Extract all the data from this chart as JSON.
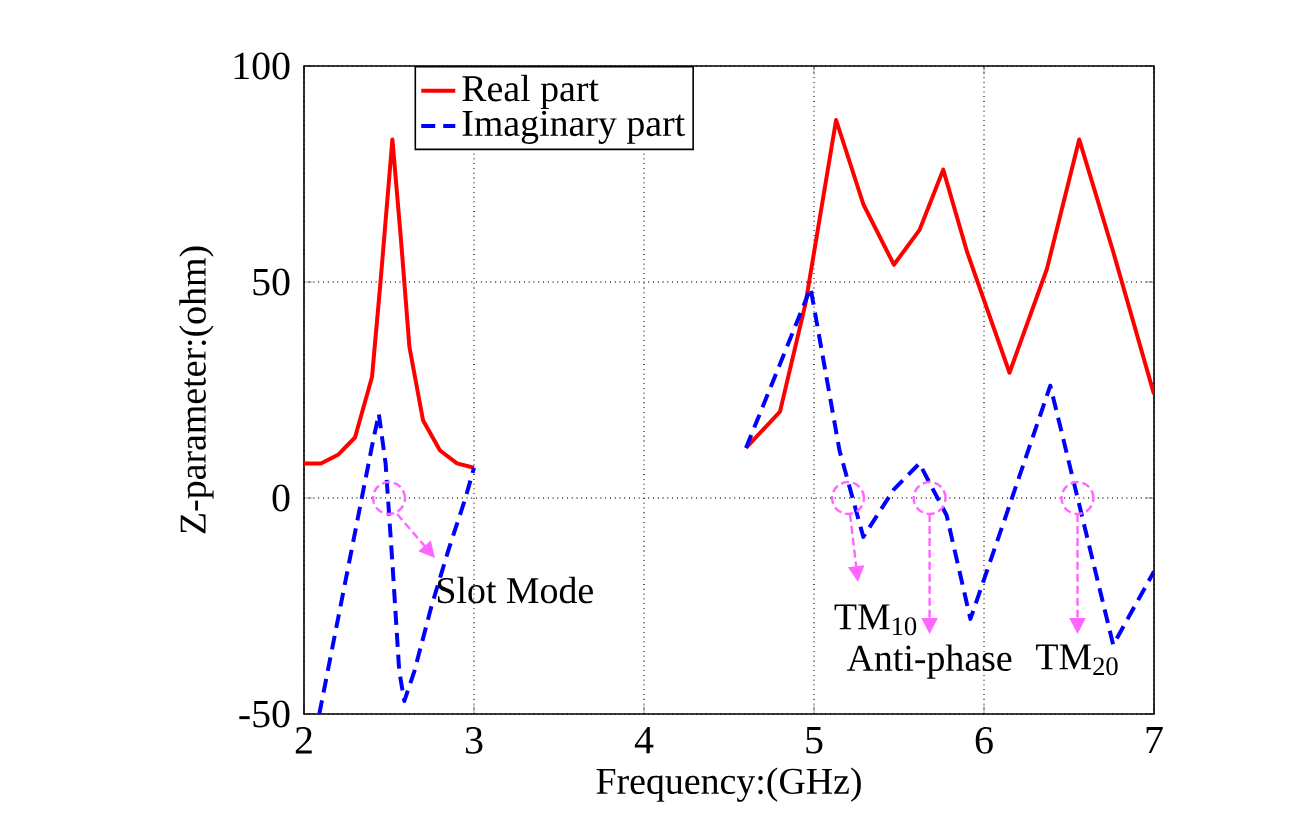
{
  "chart_data": {
    "type": "line",
    "xlabel": "Frequency:(GHz)",
    "ylabel": "Z-parameter:(ohm)",
    "xlim": [
      2,
      7
    ],
    "ylim": [
      -50,
      100
    ],
    "xticks": [
      2,
      3,
      4,
      5,
      6,
      7
    ],
    "yticks": [
      -50,
      0,
      50,
      100
    ],
    "grid": true,
    "legend": "top",
    "series": [
      {
        "name": "Real part",
        "color": "#ff0000",
        "line_style": "solid",
        "x": [
          2,
          2.1,
          2.2,
          2.3,
          2.4,
          2.45,
          2.52,
          2.57,
          2.62,
          2.7,
          2.8,
          2.9,
          3.0,
          3.8,
          4.6,
          4.8,
          4.95,
          5.13,
          5.29,
          5.47,
          5.62,
          5.76,
          5.9,
          6.15,
          6.37,
          6.56,
          6.76,
          7
        ],
        "values": [
          8,
          8,
          10,
          14,
          28,
          50,
          83,
          60,
          35,
          18,
          11,
          8,
          7,
          null,
          11.6,
          20,
          45,
          87.5,
          68,
          54,
          62,
          76,
          57,
          29,
          53,
          83,
          57,
          24
        ]
      },
      {
        "name": "Imaginary part",
        "color": "#0000ff",
        "line_style": "dashed",
        "x": [
          2.09,
          2.2,
          2.3,
          2.4,
          2.44,
          2.48,
          2.52,
          2.56,
          2.59,
          2.65,
          2.75,
          2.85,
          2.95,
          3.0,
          3.8,
          4.6,
          4.8,
          4.98,
          5.15,
          5.29,
          5.47,
          5.62,
          5.78,
          5.92,
          6.13,
          6.39,
          6.56,
          6.76,
          7
        ],
        "values": [
          -50,
          -28,
          -8,
          12,
          19.5,
          8,
          -15,
          -40,
          -47,
          -40,
          -25,
          -12,
          0,
          7,
          null,
          11.6,
          31,
          48.6,
          11,
          -9,
          2,
          8,
          -4,
          -28,
          -4,
          26,
          -1.5,
          -34,
          -17
        ]
      }
    ],
    "annotations": [
      {
        "text": "Slot Mode",
        "x": 2.5,
        "y": 0
      },
      {
        "text": "TM$_{10}$",
        "x": 5.2,
        "y": 0
      },
      {
        "text": "Anti-phase",
        "x": 5.68,
        "y": 0
      },
      {
        "text": "TM$_{20}$",
        "x": 6.55,
        "y": 0
      }
    ]
  }
}
